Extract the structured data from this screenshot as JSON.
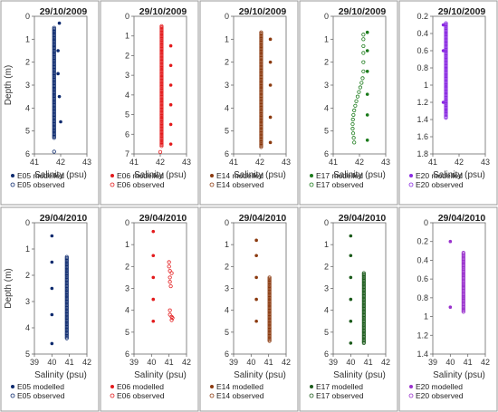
{
  "chart_data": [
    {
      "type": "scatter",
      "title": "29/10/2009",
      "xlabel": "Salinity (psu)",
      "ylabel": "Depth (m)",
      "color": "#0d2a6e",
      "xlim": [
        41,
        43
      ],
      "ylim": [
        0,
        6
      ],
      "xstep": 1,
      "ystep": 1,
      "ydec": 0,
      "xticks": [
        "41",
        "42",
        "43"
      ],
      "yticks": [
        "0",
        "1",
        "2",
        "3",
        "4",
        "5",
        "6"
      ],
      "series": [
        {
          "name": "E05 modelled",
          "marker": "filled",
          "x": [
            41.95,
            41.9,
            41.9,
            41.95,
            42.0
          ],
          "y": [
            0.3,
            1.5,
            2.5,
            3.5,
            4.6
          ]
        },
        {
          "name": "E05 observed",
          "marker": "open",
          "points": [
            {
              "x": 41.75,
              "y_from": 0.5,
              "y_to": 5.3
            },
            {
              "x": 41.75,
              "y": 5.9
            }
          ]
        }
      ]
    },
    {
      "type": "scatter",
      "title": "29/10/2009",
      "xlabel": "Salinity (psu)",
      "ylabel": "",
      "color": "#e31a1c",
      "xlim": [
        41,
        43
      ],
      "ylim": [
        0,
        7
      ],
      "xstep": 1,
      "ystep": 1,
      "ydec": 0,
      "xticks": [
        "41",
        "42",
        "43"
      ],
      "yticks": [
        "0",
        "1",
        "2",
        "3",
        "4",
        "5",
        "6",
        "7"
      ],
      "series": [
        {
          "name": "E06 modelled",
          "marker": "filled",
          "x": [
            42.4,
            42.4,
            42.4,
            42.4,
            42.4,
            42.4
          ],
          "y": [
            1.5,
            2.5,
            3.5,
            4.5,
            5.5,
            6.5
          ]
        },
        {
          "name": "E06 observed",
          "marker": "open",
          "points": [
            {
              "x": 42.05,
              "y_from": 0.5,
              "y_to": 6.6
            },
            {
              "x": 42.0,
              "y": 6.9
            }
          ]
        }
      ]
    },
    {
      "type": "scatter",
      "title": "29/10/2009",
      "xlabel": "Salinity (psu)",
      "ylabel": "",
      "color": "#8b3a0f",
      "xlim": [
        41,
        43
      ],
      "ylim": [
        0,
        6
      ],
      "xstep": 1,
      "ystep": 1,
      "ydec": 0,
      "xticks": [
        "41",
        "42",
        "43"
      ],
      "yticks": [
        "0",
        "1",
        "2",
        "3",
        "4",
        "5",
        "6"
      ],
      "series": [
        {
          "name": "E14 modelled",
          "marker": "filled",
          "x": [
            42.4,
            42.4,
            42.4,
            42.4,
            42.4
          ],
          "y": [
            1.0,
            2.0,
            3.0,
            4.4,
            5.5
          ]
        },
        {
          "name": "E14 observed",
          "marker": "open",
          "points": [
            {
              "x": 42.05,
              "y_from": 0.7,
              "y_to": 5.7
            }
          ]
        }
      ]
    },
    {
      "type": "scatter",
      "title": "29/10/2009",
      "xlabel": "Salinity (psu)",
      "ylabel": "",
      "color": "#1a7a1a",
      "xlim": [
        41,
        43
      ],
      "ylim": [
        0,
        6
      ],
      "xstep": 1,
      "ystep": 1,
      "ydec": 0,
      "xticks": [
        "41",
        "42",
        "43"
      ],
      "yticks": [
        "0",
        "1",
        "2",
        "3",
        "4",
        "5",
        "6"
      ],
      "series": [
        {
          "name": "E17 modelled",
          "marker": "filled",
          "x": [
            42.3,
            42.3,
            42.3,
            42.3,
            42.3,
            42.3
          ],
          "y": [
            0.7,
            1.5,
            2.4,
            3.4,
            4.3,
            5.4
          ]
        },
        {
          "name": "E17 observed",
          "marker": "open",
          "points": [
            {
              "x": 42.15,
              "y": 0.8
            },
            {
              "x": 42.15,
              "y": 1.0
            },
            {
              "x": 42.15,
              "y": 1.3
            },
            {
              "x": 42.15,
              "y": 1.6
            },
            {
              "x": 42.15,
              "y": 2.0
            },
            {
              "x": 42.15,
              "y": 2.4
            },
            {
              "x": 42.12,
              "y": 2.7
            },
            {
              "x": 42.08,
              "y": 2.9
            },
            {
              "x": 42.03,
              "y": 3.1
            },
            {
              "x": 41.98,
              "y": 3.3
            },
            {
              "x": 41.93,
              "y": 3.5
            },
            {
              "x": 41.88,
              "y": 3.7
            },
            {
              "x": 41.84,
              "y": 3.9
            },
            {
              "x": 41.8,
              "y": 4.1
            },
            {
              "x": 41.77,
              "y": 4.3
            },
            {
              "x": 41.75,
              "y": 4.5
            },
            {
              "x": 41.74,
              "y": 4.7
            },
            {
              "x": 41.74,
              "y": 4.9
            },
            {
              "x": 41.76,
              "y": 5.1
            },
            {
              "x": 41.78,
              "y": 5.3
            },
            {
              "x": 41.8,
              "y": 5.5
            }
          ]
        }
      ]
    },
    {
      "type": "scatter",
      "title": "29/10/2009",
      "xlabel": "Salinity (psu)",
      "ylabel": "",
      "color": "#8a2be2",
      "xlim": [
        41,
        43
      ],
      "ylim": [
        0.2,
        1.8
      ],
      "xstep": 1,
      "ystep": 0.2,
      "ydec": 1,
      "xticks": [
        "41",
        "42",
        "43"
      ],
      "yticks": [
        "0.2",
        "0.4",
        "0.6",
        "0.8",
        "1",
        "1.2",
        "1.4",
        "1.6",
        "1.8"
      ],
      "series": [
        {
          "name": "E20 modelled",
          "marker": "filled",
          "x": [
            41.4,
            41.4,
            41.4
          ],
          "y": [
            0.3,
            0.6,
            1.2
          ]
        },
        {
          "name": "E20 observed",
          "marker": "open",
          "points": [
            {
              "x": 41.5,
              "y_from": 0.28,
              "y_to": 1.38
            }
          ]
        }
      ]
    },
    {
      "type": "scatter",
      "title": "29/04/2010",
      "xlabel": "Salinity (psu)",
      "ylabel": "Depth (m)",
      "color": "#0d2a6e",
      "xlim": [
        39,
        42
      ],
      "ylim": [
        0,
        5
      ],
      "xstep": 1,
      "ystep": 1,
      "ydec": 0,
      "xticks": [
        "39",
        "40",
        "41",
        "42"
      ],
      "yticks": [
        "0",
        "1",
        "2",
        "3",
        "4",
        "5"
      ],
      "series": [
        {
          "name": "E05 modelled",
          "marker": "filled",
          "x": [
            40.0,
            40.0,
            40.0,
            40.0,
            40.0
          ],
          "y": [
            0.5,
            1.5,
            2.5,
            3.5,
            4.6
          ]
        },
        {
          "name": "E05 observed",
          "marker": "open",
          "points": [
            {
              "x": 40.85,
              "y_from": 1.3,
              "y_to": 4.4
            }
          ]
        }
      ]
    },
    {
      "type": "scatter",
      "title": "29/04/2010",
      "xlabel": "Salinity (psu)",
      "ylabel": "",
      "color": "#e31a1c",
      "xlim": [
        39,
        42
      ],
      "ylim": [
        0,
        6
      ],
      "xstep": 1,
      "ystep": 1,
      "ydec": 0,
      "xticks": [
        "39",
        "40",
        "41",
        "42"
      ],
      "yticks": [
        "0",
        "1",
        "2",
        "3",
        "4",
        "5",
        "6"
      ],
      "series": [
        {
          "name": "E06 modelled",
          "marker": "filled",
          "x": [
            40.1,
            40.1,
            40.1,
            40.1,
            40.1
          ],
          "y": [
            0.4,
            1.5,
            2.5,
            3.5,
            4.5
          ]
        },
        {
          "name": "E06 observed",
          "marker": "open",
          "points": [
            {
              "x": 41.0,
              "y": 1.8
            },
            {
              "x": 41.0,
              "y": 2.0
            },
            {
              "x": 41.05,
              "y": 2.2
            },
            {
              "x": 41.15,
              "y": 2.3
            },
            {
              "x": 41.05,
              "y": 2.5
            },
            {
              "x": 41.05,
              "y": 2.7
            },
            {
              "x": 41.1,
              "y": 2.9
            },
            {
              "x": 41.05,
              "y": 4.0
            },
            {
              "x": 41.05,
              "y": 4.2
            },
            {
              "x": 41.15,
              "y": 4.3
            },
            {
              "x": 41.2,
              "y": 4.35
            },
            {
              "x": 41.15,
              "y": 4.45
            }
          ]
        }
      ]
    },
    {
      "type": "scatter",
      "title": "29/04/2010",
      "xlabel": "Salinity (psu)",
      "ylabel": "",
      "color": "#8b3a0f",
      "xlim": [
        39,
        42
      ],
      "ylim": [
        0,
        6
      ],
      "xstep": 1,
      "ystep": 1,
      "ydec": 0,
      "xticks": [
        "39",
        "40",
        "41",
        "42"
      ],
      "yticks": [
        "0",
        "1",
        "2",
        "3",
        "4",
        "5",
        "6"
      ],
      "series": [
        {
          "name": "E14 modelled",
          "marker": "filled",
          "x": [
            40.3,
            40.3,
            40.3,
            40.3,
            40.3
          ],
          "y": [
            0.8,
            1.5,
            2.5,
            3.5,
            4.5
          ]
        },
        {
          "name": "E14 observed",
          "marker": "open",
          "points": [
            {
              "x": 41.05,
              "y_from": 2.5,
              "y_to": 5.4
            }
          ]
        }
      ]
    },
    {
      "type": "scatter",
      "title": "29/04/2010",
      "xlabel": "Salinity (psu)",
      "ylabel": "",
      "color": "#1a5a1a",
      "xlim": [
        39,
        42
      ],
      "ylim": [
        0,
        6
      ],
      "xstep": 1,
      "ystep": 1,
      "ydec": 0,
      "xticks": [
        "39",
        "40",
        "41",
        "42"
      ],
      "yticks": [
        "0",
        "1",
        "2",
        "3",
        "4",
        "5",
        "6"
      ],
      "series": [
        {
          "name": "E17 modelled",
          "marker": "filled",
          "x": [
            40.0,
            40.0,
            40.0,
            40.0,
            40.0,
            40.0
          ],
          "y": [
            0.6,
            1.5,
            2.5,
            3.5,
            4.5,
            5.5
          ]
        },
        {
          "name": "E17 observed",
          "marker": "open",
          "points": [
            {
              "x": 40.75,
              "y_from": 2.3,
              "y_to": 5.5
            }
          ]
        }
      ]
    },
    {
      "type": "scatter",
      "title": "29/04/2010",
      "xlabel": "Salinity (psu)",
      "ylabel": "",
      "color": "#9a32cd",
      "xlim": [
        39,
        42
      ],
      "ylim": [
        0,
        1.4
      ],
      "xstep": 1,
      "ystep": 0.2,
      "ydec": 1,
      "xticks": [
        "39",
        "40",
        "41",
        "42"
      ],
      "yticks": [
        "0",
        "0.2",
        "0.4",
        "0.6",
        "0.8",
        "1",
        "1.2",
        "1.4"
      ],
      "series": [
        {
          "name": "E20 modelled",
          "marker": "filled",
          "x": [
            40.0,
            40.0
          ],
          "y": [
            0.2,
            0.9
          ]
        },
        {
          "name": "E20 observed",
          "marker": "open",
          "points": [
            {
              "x": 40.75,
              "y_from": 0.32,
              "y_to": 0.95
            }
          ]
        }
      ]
    }
  ]
}
